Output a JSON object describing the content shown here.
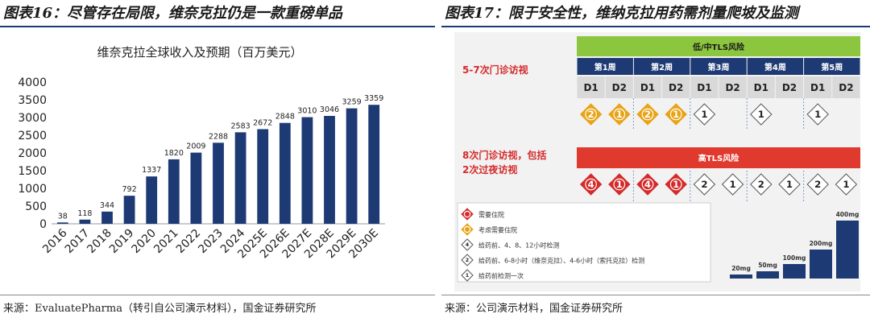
{
  "left_panel": {
    "title": "图表16：尽管存在局限，维奈克拉仍是一款重磅单品",
    "source": "来源：EvaluatePharma（转引自公司演示材料），国金证券研究所"
  },
  "right_panel": {
    "title": "图表17：限于安全性，维纳克拉用药需剂量爬坡及监测",
    "source": "来源：公司演示材料，国金证券研究所",
    "low_risk_label": "低/中TLS风险",
    "high_risk_label": "高TLS风险",
    "low_visits_label": "5-7次门诊访视",
    "high_visits_line1": "8次门诊访视，包括",
    "high_visits_line2": "2次过夜访视",
    "weeks": [
      "第1周",
      "第2周",
      "第3周",
      "第4周",
      "第5周"
    ],
    "days": [
      "D1",
      "D2",
      "D1",
      "D2",
      "D1",
      "D2",
      "D1",
      "D2",
      "D1",
      "D2"
    ],
    "low_row": [
      "2",
      "1",
      "2",
      "1",
      "1",
      "",
      "1",
      "",
      "1",
      ""
    ],
    "low_row_types": [
      "orange",
      "orange",
      "orange",
      "orange",
      "outline",
      "none",
      "outline",
      "none",
      "outline",
      "none"
    ],
    "high_row": [
      "4",
      "1",
      "4",
      "1",
      "2",
      "1",
      "2",
      "1",
      "2",
      "1"
    ],
    "high_row_types": [
      "red",
      "red",
      "red",
      "red",
      "outline",
      "outline",
      "outline",
      "outline",
      "outline",
      "outline"
    ],
    "legend": [
      {
        "glyph": "",
        "type": "red",
        "text": "需要住院"
      },
      {
        "glyph": "",
        "type": "orange",
        "text": "考虑需要住院"
      },
      {
        "glyph": "4",
        "type": "outline",
        "text": "给药前、4、8、12小时检测"
      },
      {
        "glyph": "2",
        "type": "outline",
        "text": "给药前、6-8小时（维奈克拉）、4-6小时（索托克拉）检测"
      },
      {
        "glyph": "1",
        "type": "outline",
        "text": "给药前检测一次"
      }
    ],
    "dose_labels": [
      "20mg",
      "50mg",
      "100mg",
      "200mg",
      "400mg"
    ],
    "dose_values": [
      20,
      50,
      100,
      200,
      400
    ],
    "colors": {
      "green": "#8cc63f",
      "red": "#e03a2f",
      "navy": "#1e3a74",
      "orange": "#e8a317",
      "diamond_red": "#d42a2a"
    }
  },
  "chart_data": {
    "type": "bar",
    "title": "维奈克拉全球收入及预期（百万美元）",
    "xlabel": "",
    "ylabel": "",
    "categories": [
      "2016",
      "2017",
      "2018",
      "2019",
      "2020",
      "2021",
      "2022",
      "2023",
      "2024",
      "2025E",
      "2026E",
      "2027E",
      "2028E",
      "2029E",
      "2030E"
    ],
    "values": [
      38,
      118,
      344,
      792,
      1337,
      1820,
      2009,
      2288,
      2583,
      2672,
      2848,
      3010,
      3046,
      3259,
      3359
    ],
    "yticks": [
      0,
      500,
      1000,
      1500,
      2000,
      2500,
      3000,
      3500,
      4000
    ],
    "ylim": [
      0,
      4000
    ],
    "bar_color": "#1e3a74",
    "grid": false
  }
}
